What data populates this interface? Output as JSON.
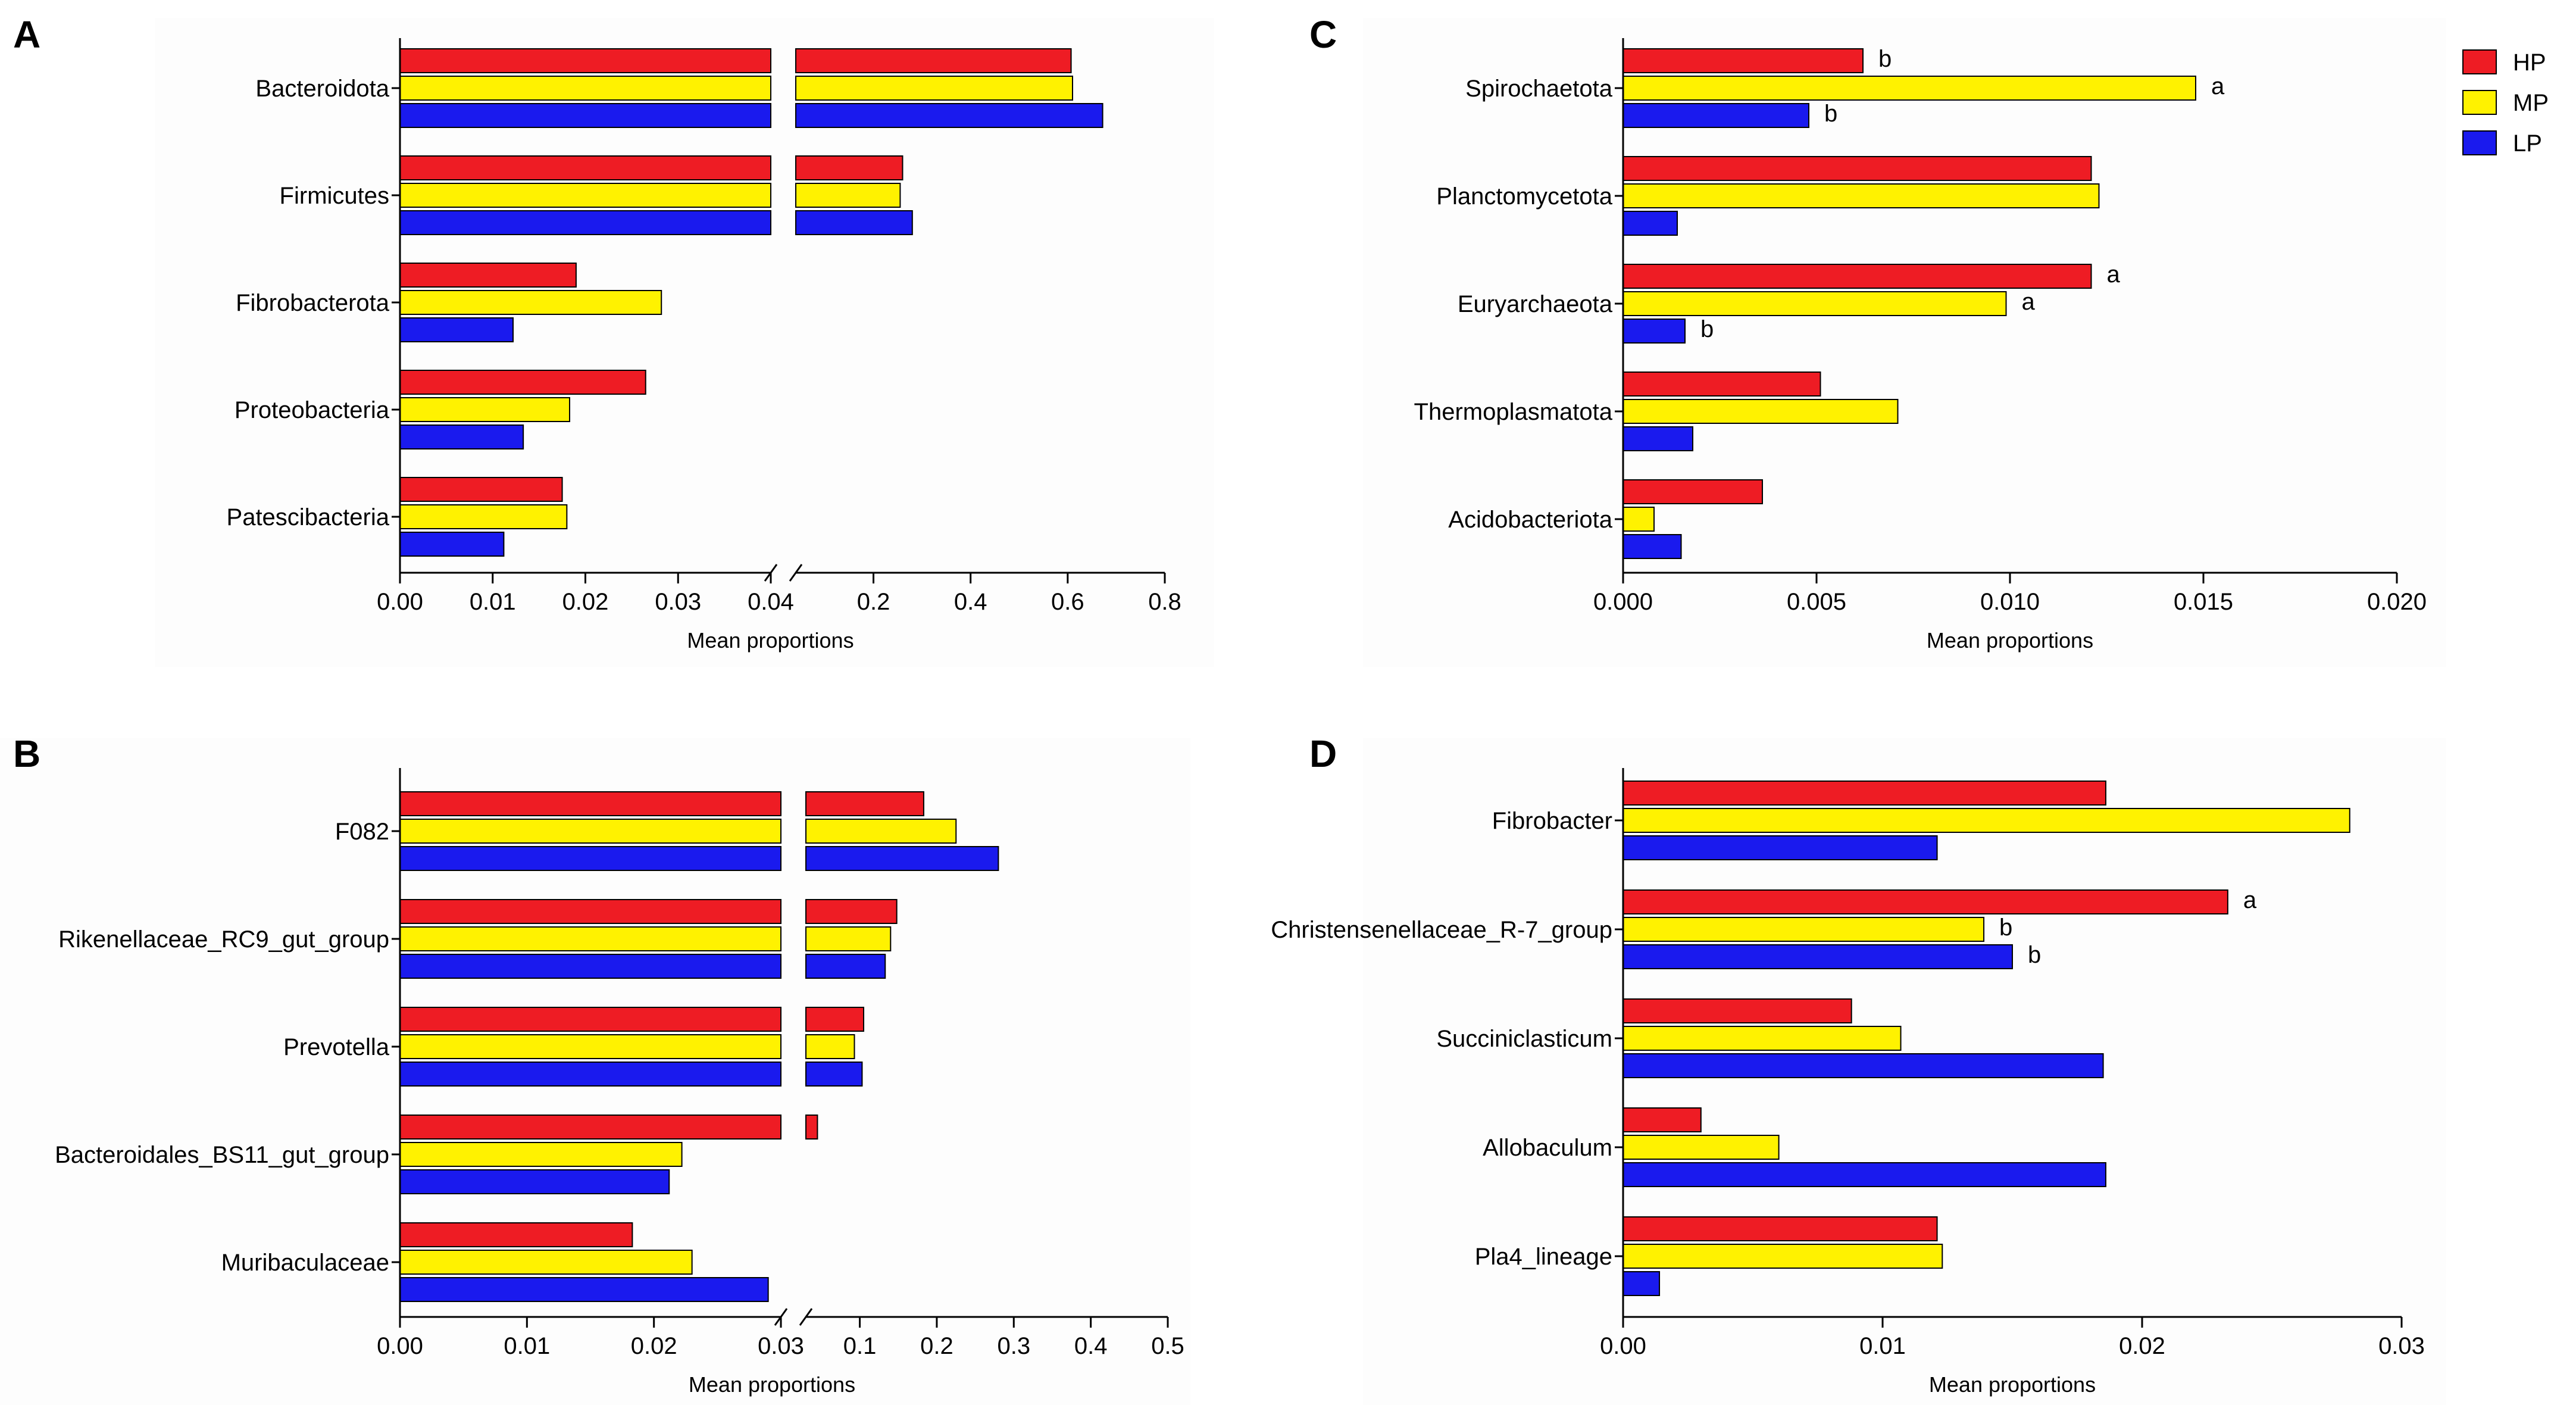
{
  "colors": {
    "HP": "#ee1c24",
    "MP": "#fff200",
    "LP": "#1a1aee",
    "stroke": "#000000"
  },
  "legend": [
    {
      "key": "HP",
      "label": "HP"
    },
    {
      "key": "MP",
      "label": "MP"
    },
    {
      "key": "LP",
      "label": "LP"
    }
  ],
  "chart_data": [
    {
      "id": "A",
      "panel_label": "A",
      "type": "bar",
      "orientation": "horizontal",
      "xlabel": "Mean proportions",
      "axis_break": {
        "left_range": [
          0,
          0.04
        ],
        "right_range": [
          0.04,
          0.8
        ]
      },
      "xticks_left": [
        "0.00",
        "0.01",
        "0.02",
        "0.03",
        "0.04"
      ],
      "xticks_right": [
        "0.2",
        "0.4",
        "0.6",
        "0.8"
      ],
      "categories": [
        "Bacteroidota",
        "Firmicutes",
        "Fibrobacterota",
        "Proteobacteria",
        "Patescibacteria"
      ],
      "series": [
        {
          "name": "HP",
          "values": [
            0.607,
            0.26,
            0.019,
            0.0265,
            0.0175
          ]
        },
        {
          "name": "MP",
          "values": [
            0.61,
            0.255,
            0.0282,
            0.0183,
            0.018
          ]
        },
        {
          "name": "LP",
          "values": [
            0.672,
            0.28,
            0.0122,
            0.0133,
            0.0112
          ]
        }
      ],
      "annotations": []
    },
    {
      "id": "B",
      "panel_label": "B",
      "type": "bar",
      "orientation": "horizontal",
      "xlabel": "Mean proportions",
      "axis_break": {
        "left_range": [
          0,
          0.03
        ],
        "right_range": [
          0.03,
          0.5
        ]
      },
      "xticks_left": [
        "0.00",
        "0.01",
        "0.02",
        "0.03"
      ],
      "xticks_right": [
        "0.1",
        "0.2",
        "0.3",
        "0.4",
        "0.5"
      ],
      "categories": [
        "F082",
        "Rikenellaceae_RC9_gut_group",
        "Prevotella",
        "Bacteroidales_BS11_gut_group",
        "Muribaculaceae"
      ],
      "series": [
        {
          "name": "HP",
          "values": [
            0.183,
            0.148,
            0.105,
            0.045,
            0.0183
          ]
        },
        {
          "name": "MP",
          "values": [
            0.225,
            0.14,
            0.093,
            0.0222,
            0.023
          ]
        },
        {
          "name": "LP",
          "values": [
            0.28,
            0.133,
            0.103,
            0.0212,
            0.029
          ]
        }
      ],
      "annotations": []
    },
    {
      "id": "C",
      "panel_label": "C",
      "type": "bar",
      "orientation": "horizontal",
      "xlabel": "Mean proportions",
      "xlim": [
        0,
        0.02
      ],
      "xticks": [
        "0.000",
        "0.005",
        "0.010",
        "0.015",
        "0.020"
      ],
      "categories": [
        "Spirochaetota",
        "Planctomycetota",
        "Euryarchaeota",
        "Thermoplasmatota",
        "Acidobacteriota"
      ],
      "series": [
        {
          "name": "HP",
          "values": [
            0.0062,
            0.0121,
            0.0121,
            0.0051,
            0.0036
          ]
        },
        {
          "name": "MP",
          "values": [
            0.0148,
            0.0123,
            0.0099,
            0.0071,
            0.0008
          ]
        },
        {
          "name": "LP",
          "values": [
            0.0048,
            0.0014,
            0.0016,
            0.0018,
            0.0015
          ]
        }
      ],
      "annotations": [
        {
          "category": 0,
          "series": 0,
          "text": "b"
        },
        {
          "category": 0,
          "series": 1,
          "text": "a"
        },
        {
          "category": 0,
          "series": 2,
          "text": "b"
        },
        {
          "category": 2,
          "series": 0,
          "text": "a"
        },
        {
          "category": 2,
          "series": 1,
          "text": "a"
        },
        {
          "category": 2,
          "series": 2,
          "text": "b"
        }
      ]
    },
    {
      "id": "D",
      "panel_label": "D",
      "type": "bar",
      "orientation": "horizontal",
      "xlabel": "Mean proportions",
      "xlim": [
        0,
        0.03
      ],
      "xticks": [
        "0.00",
        "0.01",
        "0.02",
        "0.03"
      ],
      "categories": [
        "Fibrobacter",
        "Christensenellaceae_R-7_group",
        "Succiniclasticum",
        "Allobaculum",
        "Pla4_lineage"
      ],
      "series": [
        {
          "name": "HP",
          "values": [
            0.0186,
            0.0233,
            0.0088,
            0.003,
            0.0121
          ]
        },
        {
          "name": "MP",
          "values": [
            0.028,
            0.0139,
            0.0107,
            0.006,
            0.0123
          ]
        },
        {
          "name": "LP",
          "values": [
            0.0121,
            0.015,
            0.0185,
            0.0186,
            0.0014
          ]
        }
      ],
      "annotations": [
        {
          "category": 1,
          "series": 0,
          "text": "a"
        },
        {
          "category": 1,
          "series": 1,
          "text": "b"
        },
        {
          "category": 1,
          "series": 2,
          "text": "b"
        }
      ]
    }
  ]
}
